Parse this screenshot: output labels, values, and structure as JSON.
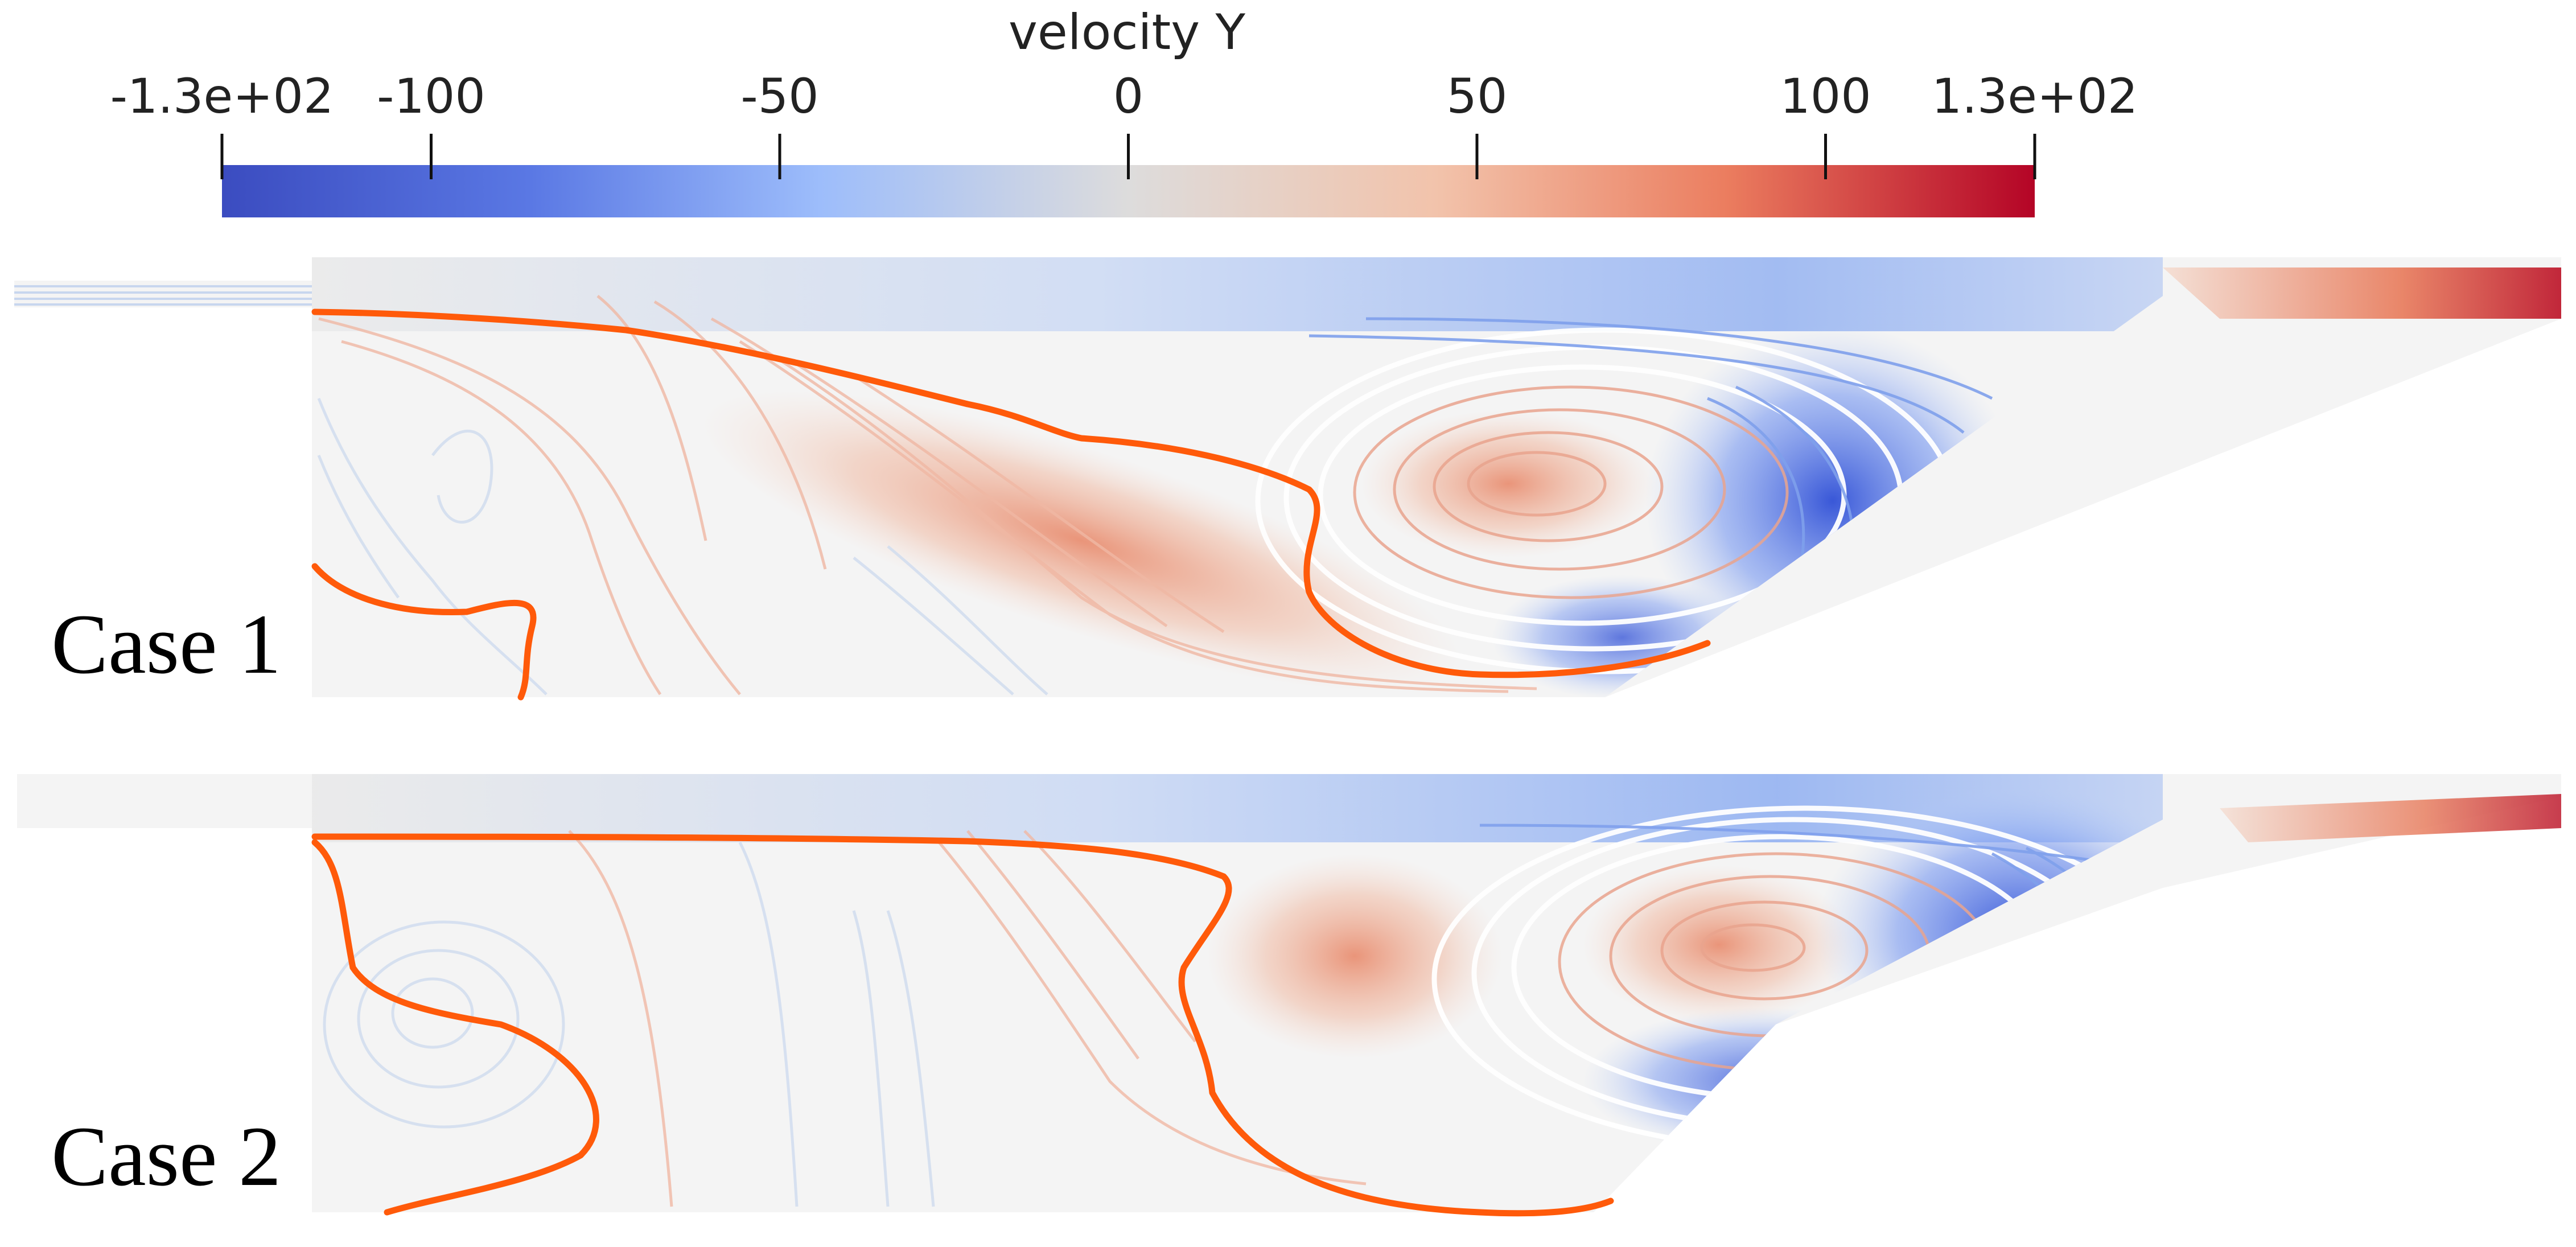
{
  "colorbar": {
    "title": "velocity Y",
    "range": [
      -130,
      130
    ],
    "ticks": [
      {
        "value": -130,
        "label": "-1.3e+02"
      },
      {
        "value": -100,
        "label": "-100"
      },
      {
        "value": -50,
        "label": "-50"
      },
      {
        "value": 0,
        "label": "0"
      },
      {
        "value": 50,
        "label": "50"
      },
      {
        "value": 100,
        "label": "100"
      },
      {
        "value": 130,
        "label": "1.3e+02"
      }
    ],
    "colormap": [
      "#3b4cc0",
      "#7b9ff9",
      "#c0d4f5",
      "#dddddd",
      "#f2cbb7",
      "#ee8468",
      "#b40426"
    ]
  },
  "panels": [
    {
      "label": "Case 1"
    },
    {
      "label": "Case 2"
    }
  ],
  "colors": {
    "contour_line": "#ff5a0a",
    "background": "#f4f4f4",
    "cool": "#3a5ad8",
    "warm": "#e07050"
  }
}
